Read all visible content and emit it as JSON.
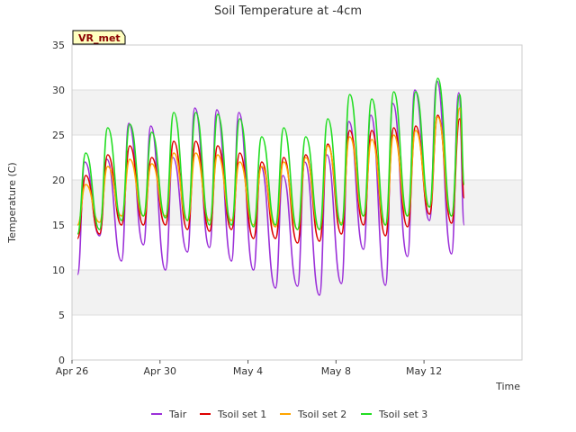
{
  "chart_data": {
    "type": "line",
    "title": "Soil Temperature at -4cm",
    "xlabel": "Time",
    "ylabel": "Temperature (C)",
    "ylim": [
      0,
      35
    ],
    "yticks": [
      0,
      5,
      10,
      15,
      20,
      25,
      30,
      35
    ],
    "xlim": [
      "2024-04-26",
      "2024-05-14"
    ],
    "xticks": [
      {
        "date": "2024-04-26",
        "label": "Apr 26"
      },
      {
        "date": "2024-04-30",
        "label": "Apr 30"
      },
      {
        "date": "2024-05-04",
        "label": "May 4"
      },
      {
        "date": "2024-05-08",
        "label": "May 8"
      },
      {
        "date": "2024-05-12",
        "label": "May 12"
      }
    ],
    "grid": "horizontal bands",
    "legend_position": "bottom",
    "badge": "VR_met",
    "series": [
      {
        "name": "Tair",
        "color": "#9b30d9",
        "points": [
          [
            "2024-04-26T06:00",
            9.5
          ],
          [
            "2024-04-26T14:00",
            22.0
          ],
          [
            "2024-04-27T06:00",
            13.8
          ],
          [
            "2024-04-27T14:00",
            22.3
          ],
          [
            "2024-04-28T06:00",
            11.0
          ],
          [
            "2024-04-28T14:00",
            26.3
          ],
          [
            "2024-04-29T06:00",
            12.8
          ],
          [
            "2024-04-29T14:00",
            26.0
          ],
          [
            "2024-04-30T06:00",
            10.0
          ],
          [
            "2024-04-30T14:00",
            22.5
          ],
          [
            "2024-05-01T06:00",
            12.0
          ],
          [
            "2024-05-01T14:00",
            28.0
          ],
          [
            "2024-05-02T06:00",
            12.5
          ],
          [
            "2024-05-02T14:00",
            27.8
          ],
          [
            "2024-05-03T06:00",
            11.0
          ],
          [
            "2024-05-03T14:00",
            27.5
          ],
          [
            "2024-05-04T06:00",
            10.0
          ],
          [
            "2024-05-04T14:00",
            21.5
          ],
          [
            "2024-05-05T06:00",
            8.0
          ],
          [
            "2024-05-05T14:00",
            20.5
          ],
          [
            "2024-05-06T06:00",
            8.2
          ],
          [
            "2024-05-06T14:00",
            22.0
          ],
          [
            "2024-05-07T06:00",
            7.2
          ],
          [
            "2024-05-07T14:00",
            22.8
          ],
          [
            "2024-05-08T06:00",
            8.5
          ],
          [
            "2024-05-08T14:00",
            26.5
          ],
          [
            "2024-05-09T06:00",
            12.3
          ],
          [
            "2024-05-09T14:00",
            27.2
          ],
          [
            "2024-05-10T06:00",
            8.3
          ],
          [
            "2024-05-10T14:00",
            28.5
          ],
          [
            "2024-05-11T06:00",
            11.5
          ],
          [
            "2024-05-11T14:00",
            30.0
          ],
          [
            "2024-05-12T06:00",
            15.5
          ],
          [
            "2024-05-12T14:00",
            31.0
          ],
          [
            "2024-05-13T06:00",
            11.8
          ],
          [
            "2024-05-13T14:00",
            29.7
          ],
          [
            "2024-05-13T20:00",
            15.0
          ]
        ]
      },
      {
        "name": "Tsoil set 1",
        "color": "#dd0000",
        "points": [
          [
            "2024-04-26T06:00",
            13.5
          ],
          [
            "2024-04-26T15:00",
            20.5
          ],
          [
            "2024-04-27T06:00",
            14.0
          ],
          [
            "2024-04-27T15:00",
            22.8
          ],
          [
            "2024-04-28T06:00",
            15.0
          ],
          [
            "2024-04-28T15:00",
            23.8
          ],
          [
            "2024-04-29T06:00",
            15.0
          ],
          [
            "2024-04-29T15:00",
            22.5
          ],
          [
            "2024-04-30T06:00",
            15.0
          ],
          [
            "2024-04-30T15:00",
            24.3
          ],
          [
            "2024-05-01T06:00",
            14.5
          ],
          [
            "2024-05-01T15:00",
            24.3
          ],
          [
            "2024-05-02T06:00",
            14.3
          ],
          [
            "2024-05-02T15:00",
            23.8
          ],
          [
            "2024-05-03T06:00",
            14.5
          ],
          [
            "2024-05-03T15:00",
            23.0
          ],
          [
            "2024-05-04T06:00",
            13.5
          ],
          [
            "2024-05-04T15:00",
            22.0
          ],
          [
            "2024-05-05T06:00",
            13.5
          ],
          [
            "2024-05-05T15:00",
            22.5
          ],
          [
            "2024-05-06T06:00",
            13.0
          ],
          [
            "2024-05-06T15:00",
            22.8
          ],
          [
            "2024-05-07T06:00",
            13.2
          ],
          [
            "2024-05-07T15:00",
            24.0
          ],
          [
            "2024-05-08T06:00",
            14.0
          ],
          [
            "2024-05-08T15:00",
            25.5
          ],
          [
            "2024-05-09T06:00",
            15.0
          ],
          [
            "2024-05-09T15:00",
            25.5
          ],
          [
            "2024-05-10T06:00",
            13.8
          ],
          [
            "2024-05-10T15:00",
            25.8
          ],
          [
            "2024-05-11T06:00",
            14.8
          ],
          [
            "2024-05-11T15:00",
            26.0
          ],
          [
            "2024-05-12T06:00",
            16.2
          ],
          [
            "2024-05-12T15:00",
            27.2
          ],
          [
            "2024-05-13T06:00",
            15.2
          ],
          [
            "2024-05-13T15:00",
            26.8
          ],
          [
            "2024-05-13T20:00",
            18.0
          ]
        ]
      },
      {
        "name": "Tsoil set 2",
        "color": "#ffa500",
        "points": [
          [
            "2024-04-26T06:00",
            15.0
          ],
          [
            "2024-04-26T15:00",
            19.5
          ],
          [
            "2024-04-27T06:00",
            15.3
          ],
          [
            "2024-04-27T15:00",
            21.5
          ],
          [
            "2024-04-28T06:00",
            16.0
          ],
          [
            "2024-04-28T15:00",
            22.3
          ],
          [
            "2024-04-29T06:00",
            16.0
          ],
          [
            "2024-04-29T15:00",
            21.8
          ],
          [
            "2024-04-30T06:00",
            16.0
          ],
          [
            "2024-04-30T15:00",
            23.0
          ],
          [
            "2024-05-01T06:00",
            15.5
          ],
          [
            "2024-05-01T15:00",
            23.0
          ],
          [
            "2024-05-02T06:00",
            15.5
          ],
          [
            "2024-05-02T15:00",
            22.8
          ],
          [
            "2024-05-03T06:00",
            15.5
          ],
          [
            "2024-05-03T15:00",
            22.0
          ],
          [
            "2024-05-04T06:00",
            15.0
          ],
          [
            "2024-05-04T15:00",
            21.5
          ],
          [
            "2024-05-05T06:00",
            14.8
          ],
          [
            "2024-05-05T15:00",
            22.0
          ],
          [
            "2024-05-06T06:00",
            14.5
          ],
          [
            "2024-05-06T15:00",
            22.5
          ],
          [
            "2024-05-07T06:00",
            14.5
          ],
          [
            "2024-05-07T15:00",
            23.8
          ],
          [
            "2024-05-08T06:00",
            15.2
          ],
          [
            "2024-05-08T15:00",
            24.8
          ],
          [
            "2024-05-09T06:00",
            16.0
          ],
          [
            "2024-05-09T15:00",
            24.5
          ],
          [
            "2024-05-10T06:00",
            15.0
          ],
          [
            "2024-05-10T15:00",
            25.0
          ],
          [
            "2024-05-11T06:00",
            16.0
          ],
          [
            "2024-05-11T15:00",
            25.5
          ],
          [
            "2024-05-12T06:00",
            17.0
          ],
          [
            "2024-05-12T15:00",
            27.0
          ],
          [
            "2024-05-13T06:00",
            16.0
          ],
          [
            "2024-05-13T15:00",
            28.0
          ],
          [
            "2024-05-13T20:00",
            19.5
          ]
        ]
      },
      {
        "name": "Tsoil set 3",
        "color": "#22dd22",
        "points": [
          [
            "2024-04-26T06:00",
            14.0
          ],
          [
            "2024-04-26T15:00",
            23.0
          ],
          [
            "2024-04-27T06:00",
            14.5
          ],
          [
            "2024-04-27T15:00",
            25.8
          ],
          [
            "2024-04-28T06:00",
            15.5
          ],
          [
            "2024-04-28T15:00",
            26.2
          ],
          [
            "2024-04-29T06:00",
            16.0
          ],
          [
            "2024-04-29T15:00",
            25.3
          ],
          [
            "2024-04-30T06:00",
            15.8
          ],
          [
            "2024-04-30T15:00",
            27.5
          ],
          [
            "2024-05-01T06:00",
            15.5
          ],
          [
            "2024-05-01T15:00",
            27.5
          ],
          [
            "2024-05-02T06:00",
            15.0
          ],
          [
            "2024-05-02T15:00",
            27.3
          ],
          [
            "2024-05-03T06:00",
            15.0
          ],
          [
            "2024-05-03T15:00",
            26.8
          ],
          [
            "2024-05-04T06:00",
            14.8
          ],
          [
            "2024-05-04T15:00",
            24.8
          ],
          [
            "2024-05-05T06:00",
            15.0
          ],
          [
            "2024-05-05T15:00",
            25.8
          ],
          [
            "2024-05-06T06:00",
            14.5
          ],
          [
            "2024-05-06T15:00",
            24.8
          ],
          [
            "2024-05-07T06:00",
            14.5
          ],
          [
            "2024-05-07T15:00",
            26.8
          ],
          [
            "2024-05-08T06:00",
            15.0
          ],
          [
            "2024-05-08T15:00",
            29.5
          ],
          [
            "2024-05-09T06:00",
            16.0
          ],
          [
            "2024-05-09T15:00",
            29.0
          ],
          [
            "2024-05-10T06:00",
            15.0
          ],
          [
            "2024-05-10T15:00",
            29.8
          ],
          [
            "2024-05-11T06:00",
            16.0
          ],
          [
            "2024-05-11T15:00",
            29.8
          ],
          [
            "2024-05-12T06:00",
            17.0
          ],
          [
            "2024-05-12T15:00",
            31.3
          ],
          [
            "2024-05-13T06:00",
            16.0
          ],
          [
            "2024-05-13T15:00",
            29.5
          ],
          [
            "2024-05-13T20:00",
            19.5
          ]
        ]
      }
    ]
  }
}
